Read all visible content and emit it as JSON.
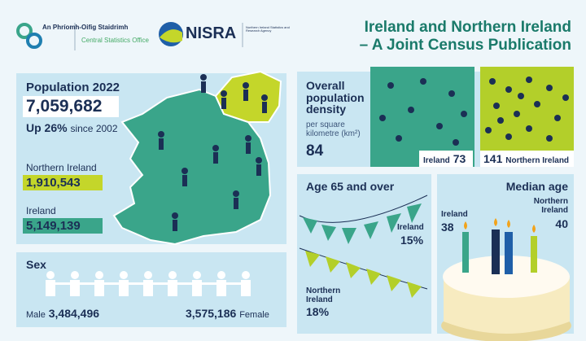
{
  "header": {
    "cso_irish": "An Phríomh-Oifig Staidrimh",
    "cso_english": "Central Statistics Office",
    "nisra": "NISRA",
    "nisra_full": "Northern Ireland Statistics and Research Agency",
    "title_line1": "Ireland and Northern Ireland",
    "title_line2": "– A Joint Census Publication"
  },
  "population": {
    "heading": "Population 2022",
    "total": "7,059,682",
    "growth": "Up 26%",
    "growth_note": "since 2002",
    "ni_label": "Northern Ireland",
    "ni_value": "1,910,543",
    "ireland_label": "Ireland",
    "ireland_value": "5,149,139"
  },
  "sex": {
    "heading": "Sex",
    "male_label": "Male",
    "male_value": "3,484,496",
    "female_value": "3,575,186",
    "female_label": "Female"
  },
  "density": {
    "heading": "Overall population density",
    "unit": "per square kilometre (km²)",
    "overall": "84",
    "ireland_label": "Ireland",
    "ireland_value": "73",
    "ni_value": "141",
    "ni_label": "Northern Ireland"
  },
  "age65": {
    "heading": "Age 65 and over",
    "ireland_label": "Ireland",
    "ireland_value": "15%",
    "ni_label": "Northern Ireland",
    "ni_value": "18%"
  },
  "median_age": {
    "heading": "Median age",
    "ireland_label": "Ireland",
    "ireland_value": "38",
    "ni_label": "Northern Ireland",
    "ni_value": "40"
  }
}
